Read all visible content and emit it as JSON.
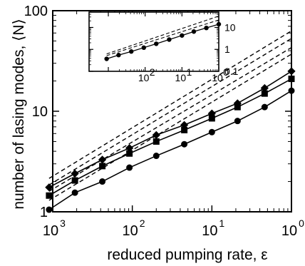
{
  "chart_data": [
    {
      "type": "line",
      "xlabel": "reduced pumping rate, ε",
      "ylabel": "number of lasing modes, ⟨N⟩",
      "x_scale": "log",
      "y_scale": "log",
      "x_reversed": true,
      "xlim": [
        0.001,
        1
      ],
      "ylim": [
        1,
        100
      ],
      "x_tick_labels": [
        "10",
        "3",
        "10",
        "2",
        "10",
        "1",
        "10",
        "0"
      ],
      "y_tick_labels": [
        "1",
        "10",
        "100"
      ],
      "series": [
        {
          "marker": "diamond",
          "x": [
            0.0009,
            0.0019,
            0.0042,
            0.0092,
            0.02,
            0.045,
            0.1,
            0.21,
            0.46,
            1.0
          ],
          "y": [
            1.75,
            2.4,
            3.3,
            4.3,
            5.8,
            7.3,
            9.5,
            12.0,
            17.0,
            25.0
          ]
        },
        {
          "marker": "square",
          "x": [
            0.0009,
            0.0019,
            0.0042,
            0.0092,
            0.02,
            0.045,
            0.1,
            0.21,
            0.46,
            1.0
          ],
          "y": [
            1.45,
            2.05,
            2.85,
            3.8,
            5.0,
            6.5,
            8.5,
            11.0,
            15.0,
            21.0
          ]
        },
        {
          "marker": "circle",
          "x": [
            0.0009,
            0.0019,
            0.0042,
            0.0092,
            0.02,
            0.045,
            0.1,
            0.21,
            0.46,
            1.0
          ],
          "y": [
            1.05,
            1.55,
            2.0,
            2.75,
            3.6,
            4.7,
            6.2,
            8.0,
            11.0,
            16.0
          ]
        }
      ],
      "dashed_lines": [
        {
          "x": [
            0.0009,
            1.0
          ],
          "y": [
            2.15,
            63.0
          ]
        },
        {
          "x": [
            0.0009,
            1.0
          ],
          "y": [
            1.85,
            53.0
          ]
        },
        {
          "x": [
            0.0009,
            1.0
          ],
          "y": [
            1.6,
            43.0
          ]
        },
        {
          "x": [
            0.0009,
            1.0
          ],
          "y": [
            1.3,
            37.0
          ]
        }
      ]
    },
    {
      "type": "line",
      "inset": true,
      "x_scale": "log",
      "y_scale": "log",
      "x_reversed": true,
      "xlim": [
        0.0003,
        1
      ],
      "ylim": [
        0.1,
        50
      ],
      "x_tick_labels": [
        "10",
        "2",
        "10",
        "1",
        "10",
        "0"
      ],
      "y_tick_labels": [
        "10",
        "1",
        "0.1"
      ],
      "series": [
        {
          "marker": "circle",
          "x": [
            0.0009,
            0.0019,
            0.0042,
            0.0092,
            0.02,
            0.045,
            0.1,
            0.21,
            0.46,
            1.0
          ],
          "y": [
            0.37,
            0.55,
            0.8,
            1.2,
            1.8,
            2.8,
            4.3,
            6.5,
            9.5,
            14.0
          ]
        }
      ],
      "dashed_lines": [
        {
          "x": [
            0.0009,
            1.0
          ],
          "y": [
            0.62,
            33.0
          ]
        },
        {
          "x": [
            0.0009,
            1.0
          ],
          "y": [
            0.52,
            22.0
          ]
        }
      ]
    }
  ]
}
